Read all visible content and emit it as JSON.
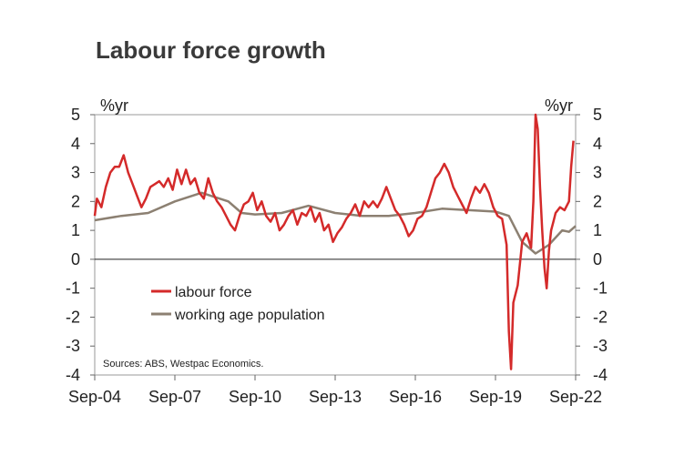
{
  "chart_data": {
    "type": "line",
    "title": "Labour force growth",
    "ylabel_left": "%yr",
    "ylabel_right": "%yr",
    "ylim": [
      -4,
      5
    ],
    "y_ticks": [
      "5",
      "4",
      "3",
      "2",
      "1",
      "0",
      "-1",
      "-2",
      "-3",
      "-4"
    ],
    "x_ticks": [
      "Sep-04",
      "Sep-07",
      "Sep-10",
      "Sep-13",
      "Sep-16",
      "Sep-19",
      "Sep-22"
    ],
    "x_range": [
      "Sep-04",
      "Sep-22"
    ],
    "source": "Sources: ABS, Westpac Economics.",
    "series": [
      {
        "name": "labour force",
        "color": "#d42a2a",
        "points": [
          [
            "Sep-04",
            1.5
          ],
          [
            "Oct-04",
            2.1
          ],
          [
            "Dec-04",
            1.8
          ],
          [
            "Feb-05",
            2.5
          ],
          [
            "Apr-05",
            3.0
          ],
          [
            "Jun-05",
            3.2
          ],
          [
            "Aug-05",
            3.2
          ],
          [
            "Oct-05",
            3.6
          ],
          [
            "Dec-05",
            3.0
          ],
          [
            "Feb-06",
            2.6
          ],
          [
            "Apr-06",
            2.2
          ],
          [
            "Jun-06",
            1.8
          ],
          [
            "Aug-06",
            2.1
          ],
          [
            "Oct-06",
            2.5
          ],
          [
            "Dec-06",
            2.6
          ],
          [
            "Feb-07",
            2.7
          ],
          [
            "Apr-07",
            2.5
          ],
          [
            "Jun-07",
            2.8
          ],
          [
            "Aug-07",
            2.4
          ],
          [
            "Oct-07",
            3.1
          ],
          [
            "Dec-07",
            2.6
          ],
          [
            "Feb-08",
            3.1
          ],
          [
            "Apr-08",
            2.6
          ],
          [
            "Jun-08",
            2.8
          ],
          [
            "Aug-08",
            2.3
          ],
          [
            "Oct-08",
            2.1
          ],
          [
            "Dec-08",
            2.8
          ],
          [
            "Feb-09",
            2.3
          ],
          [
            "Apr-09",
            2.0
          ],
          [
            "Jun-09",
            1.8
          ],
          [
            "Aug-09",
            1.5
          ],
          [
            "Oct-09",
            1.2
          ],
          [
            "Dec-09",
            1.0
          ],
          [
            "Feb-10",
            1.5
          ],
          [
            "Apr-10",
            1.9
          ],
          [
            "Jun-10",
            2.0
          ],
          [
            "Aug-10",
            2.3
          ],
          [
            "Oct-10",
            1.7
          ],
          [
            "Dec-10",
            2.0
          ],
          [
            "Feb-11",
            1.5
          ],
          [
            "Apr-11",
            1.3
          ],
          [
            "Jun-11",
            1.6
          ],
          [
            "Aug-11",
            1.0
          ],
          [
            "Oct-11",
            1.2
          ],
          [
            "Dec-11",
            1.5
          ],
          [
            "Feb-12",
            1.7
          ],
          [
            "Apr-12",
            1.2
          ],
          [
            "Jun-12",
            1.6
          ],
          [
            "Aug-12",
            1.5
          ],
          [
            "Oct-12",
            1.8
          ],
          [
            "Dec-12",
            1.3
          ],
          [
            "Feb-13",
            1.6
          ],
          [
            "Apr-13",
            1.0
          ],
          [
            "Jun-13",
            1.2
          ],
          [
            "Aug-13",
            0.6
          ],
          [
            "Oct-13",
            0.9
          ],
          [
            "Dec-13",
            1.1
          ],
          [
            "Feb-14",
            1.4
          ],
          [
            "Apr-14",
            1.6
          ],
          [
            "Jun-14",
            1.9
          ],
          [
            "Aug-14",
            1.5
          ],
          [
            "Oct-14",
            2.0
          ],
          [
            "Dec-14",
            1.8
          ],
          [
            "Feb-15",
            2.0
          ],
          [
            "Apr-15",
            1.8
          ],
          [
            "Jun-15",
            2.1
          ],
          [
            "Aug-15",
            2.5
          ],
          [
            "Oct-15",
            2.1
          ],
          [
            "Dec-15",
            1.7
          ],
          [
            "Feb-16",
            1.5
          ],
          [
            "Apr-16",
            1.2
          ],
          [
            "Jun-16",
            0.8
          ],
          [
            "Aug-16",
            1.0
          ],
          [
            "Oct-16",
            1.4
          ],
          [
            "Dec-16",
            1.5
          ],
          [
            "Feb-17",
            1.8
          ],
          [
            "Apr-17",
            2.3
          ],
          [
            "Jun-17",
            2.8
          ],
          [
            "Aug-17",
            3.0
          ],
          [
            "Oct-17",
            3.3
          ],
          [
            "Dec-17",
            3.0
          ],
          [
            "Feb-18",
            2.5
          ],
          [
            "Apr-18",
            2.2
          ],
          [
            "Jun-18",
            1.9
          ],
          [
            "Aug-18",
            1.6
          ],
          [
            "Oct-18",
            2.1
          ],
          [
            "Dec-18",
            2.5
          ],
          [
            "Feb-19",
            2.3
          ],
          [
            "Apr-19",
            2.6
          ],
          [
            "Jun-19",
            2.3
          ],
          [
            "Aug-19",
            1.8
          ],
          [
            "Oct-19",
            1.5
          ],
          [
            "Dec-19",
            1.4
          ],
          [
            "Feb-20",
            0.5
          ],
          [
            "Mar-20",
            -2.5
          ],
          [
            "Apr-20",
            -3.8
          ],
          [
            "May-20",
            -1.5
          ],
          [
            "Jul-20",
            -0.9
          ],
          [
            "Sep-20",
            0.6
          ],
          [
            "Nov-20",
            0.9
          ],
          [
            "Jan-21",
            0.4
          ],
          [
            "Feb-21",
            2.0
          ],
          [
            "Mar-21",
            5.0
          ],
          [
            "Apr-21",
            4.5
          ],
          [
            "May-21",
            2.5
          ],
          [
            "Jun-21",
            1.0
          ],
          [
            "Jul-21",
            -0.3
          ],
          [
            "Aug-21",
            -1.0
          ],
          [
            "Sep-21",
            0.3
          ],
          [
            "Oct-21",
            1.0
          ],
          [
            "Nov-21",
            1.3
          ],
          [
            "Dec-21",
            1.6
          ],
          [
            "Feb-22",
            1.8
          ],
          [
            "Apr-22",
            1.7
          ],
          [
            "Jun-22",
            2.0
          ],
          [
            "Jul-22",
            3.2
          ],
          [
            "Aug-22",
            4.1
          ]
        ]
      },
      {
        "name": "working age population",
        "color": "#8c8072",
        "points": [
          [
            "Sep-04",
            1.35
          ],
          [
            "Sep-05",
            1.5
          ],
          [
            "Sep-06",
            1.6
          ],
          [
            "Sep-07",
            2.0
          ],
          [
            "Sep-08",
            2.3
          ],
          [
            "Sep-09",
            2.0
          ],
          [
            "Mar-10",
            1.6
          ],
          [
            "Sep-10",
            1.55
          ],
          [
            "Sep-11",
            1.6
          ],
          [
            "Sep-12",
            1.85
          ],
          [
            "Sep-13",
            1.6
          ],
          [
            "Sep-14",
            1.5
          ],
          [
            "Sep-15",
            1.5
          ],
          [
            "Sep-16",
            1.6
          ],
          [
            "Sep-17",
            1.75
          ],
          [
            "Sep-18",
            1.7
          ],
          [
            "Sep-19",
            1.65
          ],
          [
            "Mar-20",
            1.5
          ],
          [
            "Sep-20",
            0.6
          ],
          [
            "Mar-21",
            0.2
          ],
          [
            "Sep-21",
            0.5
          ],
          [
            "Mar-22",
            1.0
          ],
          [
            "Jun-22",
            0.95
          ],
          [
            "Sep-22",
            1.15
          ]
        ]
      }
    ],
    "legend": [
      "labour force",
      "working age population"
    ]
  }
}
